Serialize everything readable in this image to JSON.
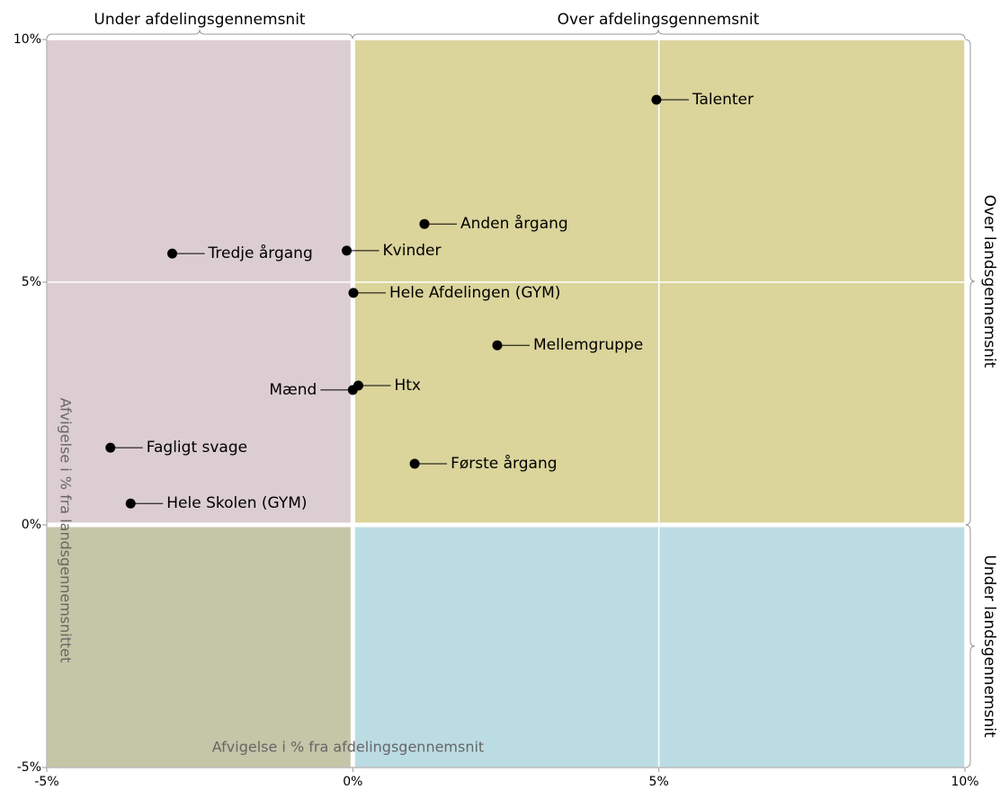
{
  "chart_data": {
    "type": "scatter",
    "x_axis_title": "Afvigelse i % fra afdelingsgennemsnit",
    "y_axis_title": "Afvigelse i % fra landsgennemsnittet",
    "annotations": {
      "top_left": "Under afdelingsgennemsnit",
      "top_right": "Over afdelingsgennemsnit",
      "right_top": "Over landsgennemsnit",
      "right_bottom": "Under landsgennemsnit"
    },
    "labels": [
      "Talenter",
      "Anden årgang",
      "Tredje årgang",
      "Kvinder",
      "Hele Afdelingen (GYM)",
      "Mellemgruppe",
      "Mænd",
      "Htx",
      "Fagligt svage",
      "Første årgang",
      "Hele Skolen (GYM)"
    ],
    "x": [
      4.96,
      1.17,
      -2.95,
      -0.1,
      0.01,
      2.36,
      0.0,
      0.09,
      -3.96,
      1.01,
      -3.63
    ],
    "values": [
      8.76,
      6.2,
      5.59,
      5.65,
      4.78,
      3.7,
      2.78,
      2.87,
      1.59,
      1.26,
      0.44
    ],
    "label_side": [
      "right",
      "right",
      "right",
      "right",
      "right",
      "right",
      "left",
      "right",
      "right",
      "right",
      "right"
    ],
    "color": "#000000",
    "quadrant_colors": {
      "top_left": "#dccdd3",
      "top_right": "#dbd49b",
      "bottom_left": "#c5c5a8",
      "bottom_right": "#bcdce4"
    },
    "xlim": [
      -5,
      10
    ],
    "ylim": [
      -5,
      10
    ],
    "xticks": [
      {
        "value": -5,
        "label": "-5%"
      },
      {
        "value": 0,
        "label": "0%"
      },
      {
        "value": 5,
        "label": "5%"
      },
      {
        "value": 10,
        "label": "10%"
      }
    ],
    "yticks": [
      {
        "value": -5,
        "label": "-5%"
      },
      {
        "value": 0,
        "label": "0%"
      },
      {
        "value": 5,
        "label": "5%"
      },
      {
        "value": 10,
        "label": "10%"
      }
    ],
    "grid": true
  }
}
